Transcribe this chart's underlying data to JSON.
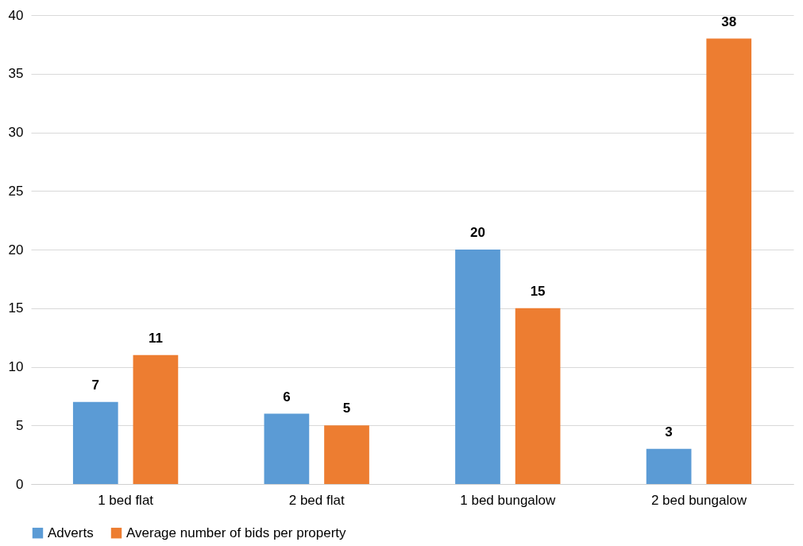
{
  "chart_data": {
    "type": "bar",
    "categories": [
      "1 bed flat",
      "2 bed flat",
      "1 bed bungalow",
      "2 bed bungalow"
    ],
    "series": [
      {
        "name": "Adverts",
        "color": "#5b9bd5",
        "values": [
          7,
          6,
          20,
          3
        ]
      },
      {
        "name": "Average number of bids per property",
        "color": "#ed7d31",
        "values": [
          11,
          5,
          15,
          38
        ]
      }
    ],
    "ylim": [
      0,
      40
    ],
    "yticks": [
      0,
      5,
      10,
      15,
      20,
      25,
      30,
      35,
      40
    ],
    "grid": "y",
    "legend": "bottom",
    "data_labels": true
  }
}
